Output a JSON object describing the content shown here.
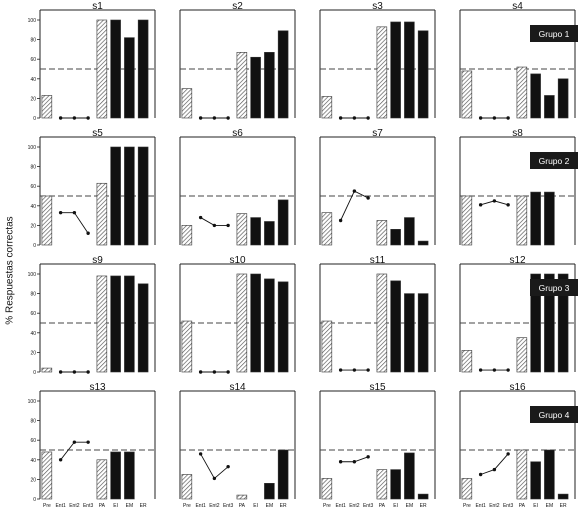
{
  "figure": {
    "ylabel": "% Respuestas correctas"
  },
  "chart_data": {
    "type": "bar",
    "ylim": [
      0,
      100
    ],
    "yticks": [
      0,
      20,
      40,
      60,
      80,
      100
    ],
    "reference_line": 50,
    "categories": [
      "Pre",
      "Ent1",
      "Ent2",
      "Ent3",
      "PA",
      "EI",
      "EM",
      "ER"
    ],
    "groups": [
      {
        "label": "Grupo 1",
        "subjects": [
          "s1",
          "s2",
          "s3",
          "s4"
        ]
      },
      {
        "label": "Grupo 2",
        "subjects": [
          "s5",
          "s6",
          "s7",
          "s8"
        ]
      },
      {
        "label": "Grupo 3",
        "subjects": [
          "s9",
          "s10",
          "s11",
          "s12"
        ]
      },
      {
        "label": "Grupo 4",
        "subjects": [
          "s13",
          "s14",
          "s15",
          "s16"
        ]
      }
    ],
    "panels": [
      {
        "title": "s1",
        "pre": 23,
        "training": [
          0,
          0,
          0
        ],
        "pa": 100,
        "tests": [
          100,
          82,
          100
        ]
      },
      {
        "title": "s2",
        "pre": 30,
        "training": [
          0,
          0,
          0
        ],
        "pa": 67,
        "tests": [
          62,
          67,
          89
        ]
      },
      {
        "title": "s3",
        "pre": 22,
        "training": [
          0,
          0,
          0
        ],
        "pa": 93,
        "tests": [
          98,
          98,
          89
        ]
      },
      {
        "title": "s4",
        "pre": 48,
        "training": [
          0,
          0,
          0
        ],
        "pa": 52,
        "tests": [
          45,
          23,
          40
        ]
      },
      {
        "title": "s5",
        "pre": 50,
        "training": [
          33,
          33,
          12
        ],
        "pa": 63,
        "tests": [
          100,
          100,
          100
        ]
      },
      {
        "title": "s6",
        "pre": 20,
        "training": [
          28,
          20,
          20
        ],
        "pa": 32,
        "tests": [
          28,
          24,
          46
        ]
      },
      {
        "title": "s7",
        "pre": 33,
        "training": [
          25,
          55,
          48
        ],
        "pa": 25,
        "tests": [
          16,
          28,
          4
        ]
      },
      {
        "title": "s8",
        "pre": 50,
        "training": [
          41,
          45,
          41
        ],
        "pa": 50,
        "tests": [
          54,
          54,
          null
        ]
      },
      {
        "title": "s9",
        "pre": 4,
        "training": [
          0,
          0,
          0
        ],
        "pa": 98,
        "tests": [
          98,
          98,
          90
        ]
      },
      {
        "title": "s10",
        "pre": 52,
        "training": [
          0,
          0,
          0
        ],
        "pa": 100,
        "tests": [
          100,
          95,
          92
        ]
      },
      {
        "title": "s11",
        "pre": 52,
        "training": [
          2,
          2,
          2
        ],
        "pa": 100,
        "tests": [
          93,
          80,
          80
        ]
      },
      {
        "title": "s12",
        "pre": 22,
        "training": [
          2,
          2,
          2
        ],
        "pa": 35,
        "tests": [
          100,
          100,
          100
        ]
      },
      {
        "title": "s13",
        "pre": 48,
        "training": [
          40,
          58,
          58
        ],
        "pa": 40,
        "tests": [
          48,
          48,
          null
        ]
      },
      {
        "title": "s14",
        "pre": 25,
        "training": [
          46,
          21,
          33
        ],
        "pa": 4,
        "tests": [
          null,
          16,
          50
        ]
      },
      {
        "title": "s15",
        "pre": 21,
        "training": [
          38,
          38,
          43
        ],
        "pa": 30,
        "tests": [
          30,
          47,
          5
        ]
      },
      {
        "title": "s16",
        "pre": 21,
        "training": [
          25,
          30,
          46
        ],
        "pa": 50,
        "tests": [
          38,
          50,
          5
        ]
      }
    ]
  }
}
